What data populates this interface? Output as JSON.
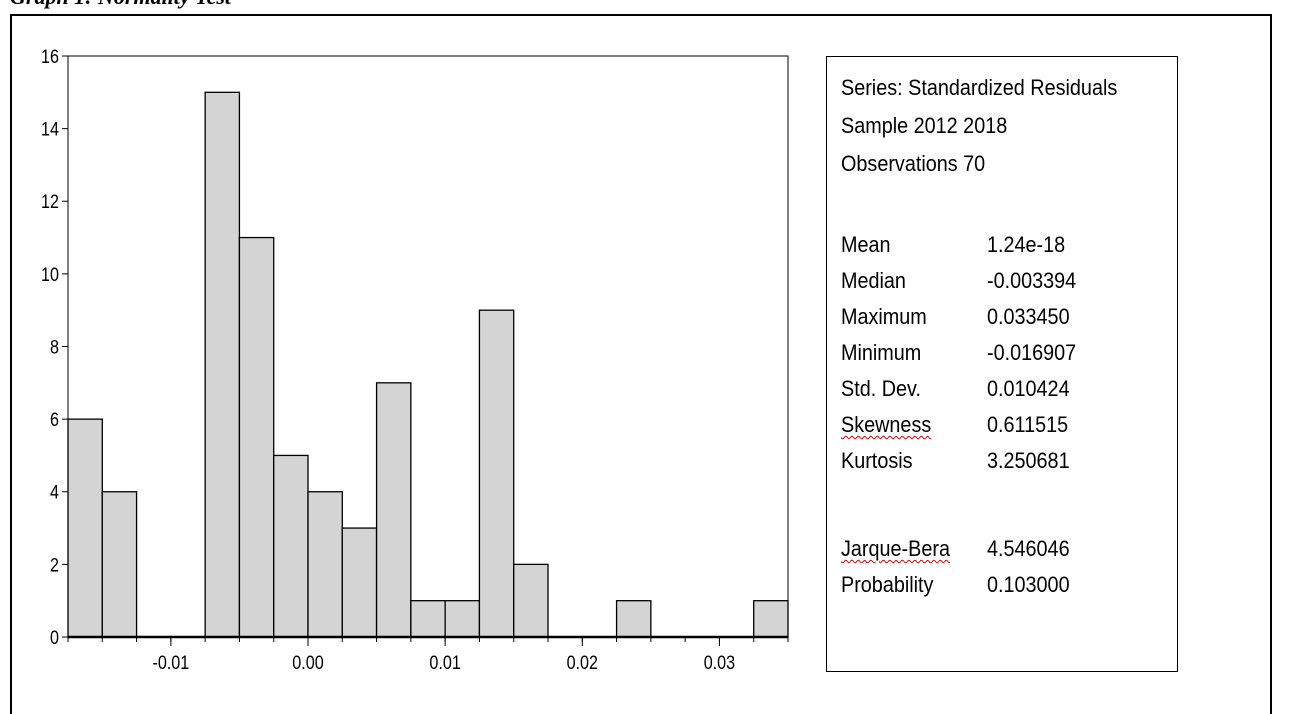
{
  "chart_data": {
    "type": "bar",
    "title": "",
    "xlabel": "",
    "ylabel": "",
    "bin_width": 0.0025,
    "bins": [
      {
        "start": -0.0175,
        "count": 6
      },
      {
        "start": -0.015,
        "count": 4
      },
      {
        "start": -0.0125,
        "count": 0
      },
      {
        "start": -0.01,
        "count": 0
      },
      {
        "start": -0.0075,
        "count": 15
      },
      {
        "start": -0.005,
        "count": 11
      },
      {
        "start": -0.0025,
        "count": 5
      },
      {
        "start": 0.0,
        "count": 4
      },
      {
        "start": 0.0025,
        "count": 3
      },
      {
        "start": 0.005,
        "count": 7
      },
      {
        "start": 0.0075,
        "count": 1
      },
      {
        "start": 0.01,
        "count": 1
      },
      {
        "start": 0.0125,
        "count": 9
      },
      {
        "start": 0.015,
        "count": 2
      },
      {
        "start": 0.0175,
        "count": 0
      },
      {
        "start": 0.02,
        "count": 0
      },
      {
        "start": 0.0225,
        "count": 1
      },
      {
        "start": 0.025,
        "count": 0
      },
      {
        "start": 0.0275,
        "count": 0
      },
      {
        "start": 0.03,
        "count": 0
      },
      {
        "start": 0.0325,
        "count": 1
      }
    ],
    "xlim": [
      -0.0175,
      0.035
    ],
    "ylim": [
      0,
      16
    ],
    "x_ticks": [
      -0.01,
      0.0,
      0.01,
      0.02,
      0.03
    ],
    "x_tick_labels": [
      "-0.01",
      "0.00",
      "0.01",
      "0.02",
      "0.03"
    ],
    "y_ticks": [
      0,
      2,
      4,
      6,
      8,
      10,
      12,
      14,
      16
    ],
    "y_tick_labels": [
      "0",
      "2",
      "4",
      "6",
      "8",
      "10",
      "12",
      "14",
      "16"
    ],
    "grid": false,
    "bar_color": "#d4d4d4",
    "edge_color": "#000000"
  },
  "heading_fragment": "Graph 1: Normality Test",
  "stats": {
    "series_line": "Series: Standardized Residuals",
    "sample_line": "Sample 2012 2018",
    "observations_line": "Observations 70",
    "rows": [
      {
        "label": "Mean",
        "value": "1.24e-18"
      },
      {
        "label": "Median",
        "value": "-0.003394"
      },
      {
        "label": "Maximum",
        "value": "0.033450"
      },
      {
        "label": "Minimum",
        "value": "-0.016907"
      },
      {
        "label": "Std. Dev.",
        "value": "0.010424"
      },
      {
        "label": "Skewness",
        "value": "0.611515"
      },
      {
        "label": "Kurtosis",
        "value": "3.250681"
      }
    ],
    "test_rows": [
      {
        "label": "Jarque-Bera",
        "value": "4.546046"
      },
      {
        "label": "Probability",
        "value": "0.103000"
      }
    ]
  }
}
